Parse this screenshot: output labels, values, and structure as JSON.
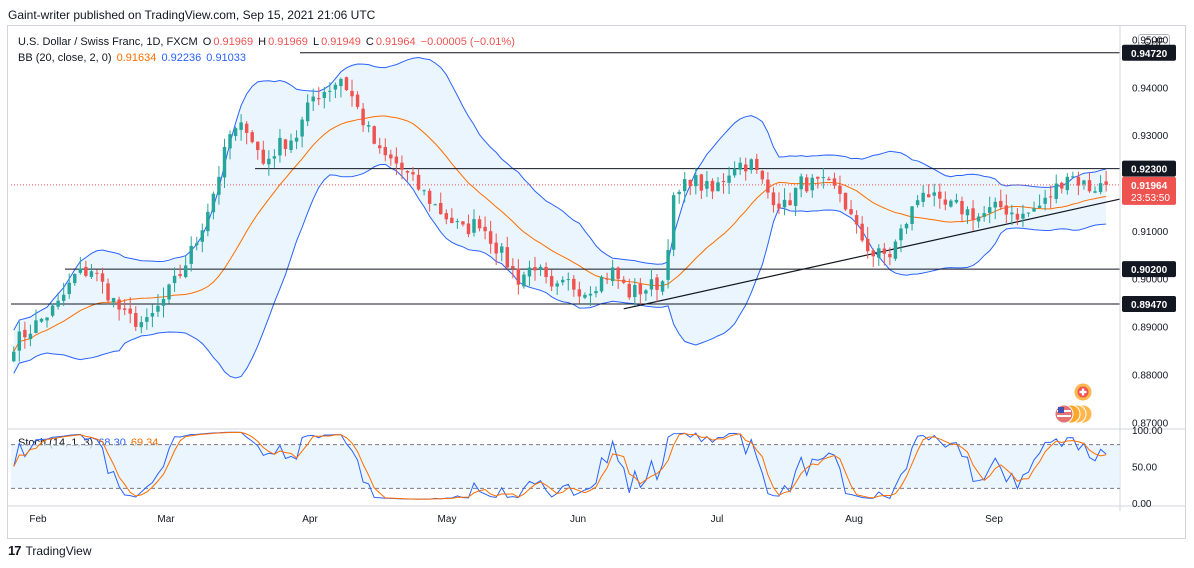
{
  "header": {
    "publisher": "Gaint-writer published on TradingView.com, Sep 15, 2021 21:06 UTC"
  },
  "main_legend": {
    "symbol": "U.S. Dollar / Swiss Franc, 1D, FXCM",
    "o_label": "O",
    "o": "0.91969",
    "h_label": "H",
    "h": "0.91969",
    "l_label": "L",
    "l": "0.91949",
    "c_label": "C",
    "c": "0.91964",
    "change": "−0.00005 (−0.01%)"
  },
  "bb_legend": {
    "label": "BB (20, close, 2, 0)",
    "basis": "0.91634",
    "upper": "0.92236",
    "lower": "0.91033"
  },
  "stoch_legend": {
    "label": "Stoch (14, 1, 3)",
    "k": "68.30",
    "d": "69.34"
  },
  "currency_button": "CHF",
  "price_badge": {
    "price": "0.91964",
    "countdown": "23:53:50"
  },
  "footer": {
    "brand": "TradingView"
  },
  "colors": {
    "up": "#26a69a",
    "down": "#ef5350",
    "bb_band": "#2962ff",
    "bb_basis": "#ff6d00",
    "bb_fill": "#e3f2fd",
    "stoch_k": "#2962ff",
    "stoch_d": "#ff6d00"
  },
  "chart_data": {
    "type": "candlestick",
    "x_ticks": [
      "Feb",
      "Mar",
      "Apr",
      "May",
      "Jun",
      "Jul",
      "Aug",
      "Sep"
    ],
    "y_ticks": [
      "0.87000",
      "0.88000",
      "0.89000",
      "0.90000",
      "0.91000",
      "0.92000",
      "0.93000",
      "0.94000",
      "0.95000"
    ],
    "ylim": [
      0.8688,
      0.9528
    ],
    "levels": [
      {
        "label": "0.94720",
        "value": 0.9472
      },
      {
        "label": "0.92300",
        "value": 0.923
      },
      {
        "label": "0.90200",
        "value": 0.902
      },
      {
        "label": "0.89470",
        "value": 0.8947
      }
    ],
    "trendline": {
      "from": {
        "day": 110,
        "price": 0.8937
      },
      "to": {
        "day": 199,
        "price": 0.9158
      }
    },
    "candles_start_day": 0,
    "close_anchors": [
      [
        0,
        0.8865
      ],
      [
        4,
        0.8905
      ],
      [
        8,
        0.8945
      ],
      [
        11,
        0.9005
      ],
      [
        14,
        0.902
      ],
      [
        17,
        0.897
      ],
      [
        20,
        0.892
      ],
      [
        24,
        0.8905
      ],
      [
        27,
        0.8955
      ],
      [
        30,
        0.901
      ],
      [
        33,
        0.908
      ],
      [
        36,
        0.918
      ],
      [
        39,
        0.93
      ],
      [
        42,
        0.932
      ],
      [
        45,
        0.924
      ],
      [
        48,
        0.928
      ],
      [
        51,
        0.93
      ],
      [
        54,
        0.938
      ],
      [
        57,
        0.94
      ],
      [
        59,
        0.942
      ],
      [
        61,
        0.938
      ],
      [
        63,
        0.933
      ],
      [
        66,
        0.926
      ],
      [
        69,
        0.924
      ],
      [
        73,
        0.919
      ],
      [
        77,
        0.914
      ],
      [
        81,
        0.91
      ],
      [
        84,
        0.912
      ],
      [
        88,
        0.905
      ],
      [
        91,
        0.9
      ],
      [
        94,
        0.903
      ],
      [
        97,
        0.897
      ],
      [
        100,
        0.899
      ],
      [
        103,
        0.8975
      ],
      [
        106,
        0.9
      ],
      [
        108,
        0.9015
      ],
      [
        111,
        0.897
      ],
      [
        114,
        0.898
      ],
      [
        117,
        0.8995
      ],
      [
        119,
        0.916
      ],
      [
        122,
        0.921
      ],
      [
        126,
        0.918
      ],
      [
        130,
        0.924
      ],
      [
        133,
        0.924
      ],
      [
        136,
        0.918
      ],
      [
        139,
        0.915
      ],
      [
        142,
        0.92
      ],
      [
        146,
        0.9195
      ],
      [
        149,
        0.918
      ],
      [
        152,
        0.91
      ],
      [
        155,
        0.905
      ],
      [
        158,
        0.905
      ],
      [
        161,
        0.912
      ],
      [
        164,
        0.919
      ],
      [
        167,
        0.915
      ],
      [
        170,
        0.915
      ],
      [
        174,
        0.913
      ],
      [
        178,
        0.915
      ],
      [
        182,
        0.913
      ],
      [
        186,
        0.916
      ],
      [
        190,
        0.922
      ],
      [
        194,
        0.919
      ],
      [
        197,
        0.9196
      ]
    ],
    "stoch_ylim": [
      0,
      100
    ],
    "stoch_ticks": [
      "100.00",
      "50.00",
      "0.00"
    ],
    "stoch_levels": [
      80,
      20
    ]
  }
}
